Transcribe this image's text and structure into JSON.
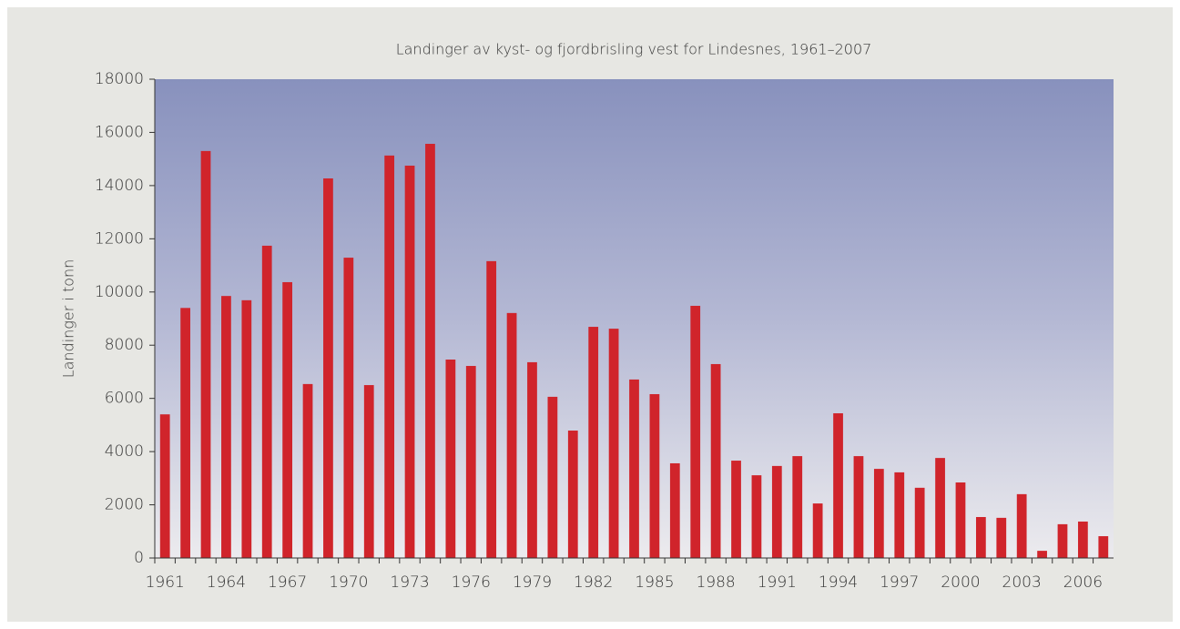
{
  "chart_data": {
    "type": "bar",
    "title": "Landinger av kyst- og fjordbrisling vest for Lindesnes, 1961–2007",
    "y_label": "Landinger i tonn",
    "categories": [
      "1961",
      null,
      null,
      "1964",
      null,
      null,
      "1967",
      null,
      null,
      "1970",
      null,
      null,
      "1973",
      null,
      null,
      "1976",
      null,
      null,
      "1979",
      null,
      null,
      "1982",
      null,
      null,
      "1985",
      null,
      null,
      "1988",
      null,
      null,
      "1991",
      null,
      null,
      "1994",
      null,
      null,
      "1997",
      null,
      null,
      "2000",
      null,
      null,
      "2003",
      null,
      null,
      "2006",
      null
    ],
    "values": [
      5400,
      9400,
      15300,
      9850,
      9690,
      11740,
      10370,
      6540,
      14270,
      11290,
      6500,
      15130,
      14750,
      15570,
      7460,
      7220,
      11160,
      9210,
      7360,
      6060,
      4790,
      8690,
      8620,
      6710,
      6160,
      3560,
      9480,
      7290,
      3660,
      3110,
      3460,
      3830,
      2050,
      5440,
      3830,
      3350,
      3220,
      2640,
      3760,
      2840,
      1540,
      1510,
      2400,
      270,
      1270,
      1370,
      820
    ],
    "color": "#d0242b",
    "ylim": [
      0,
      18000
    ],
    "yticks": [
      0,
      2000,
      4000,
      6000,
      8000,
      10000,
      12000,
      14000,
      16000,
      18000
    ],
    "grid": false
  }
}
